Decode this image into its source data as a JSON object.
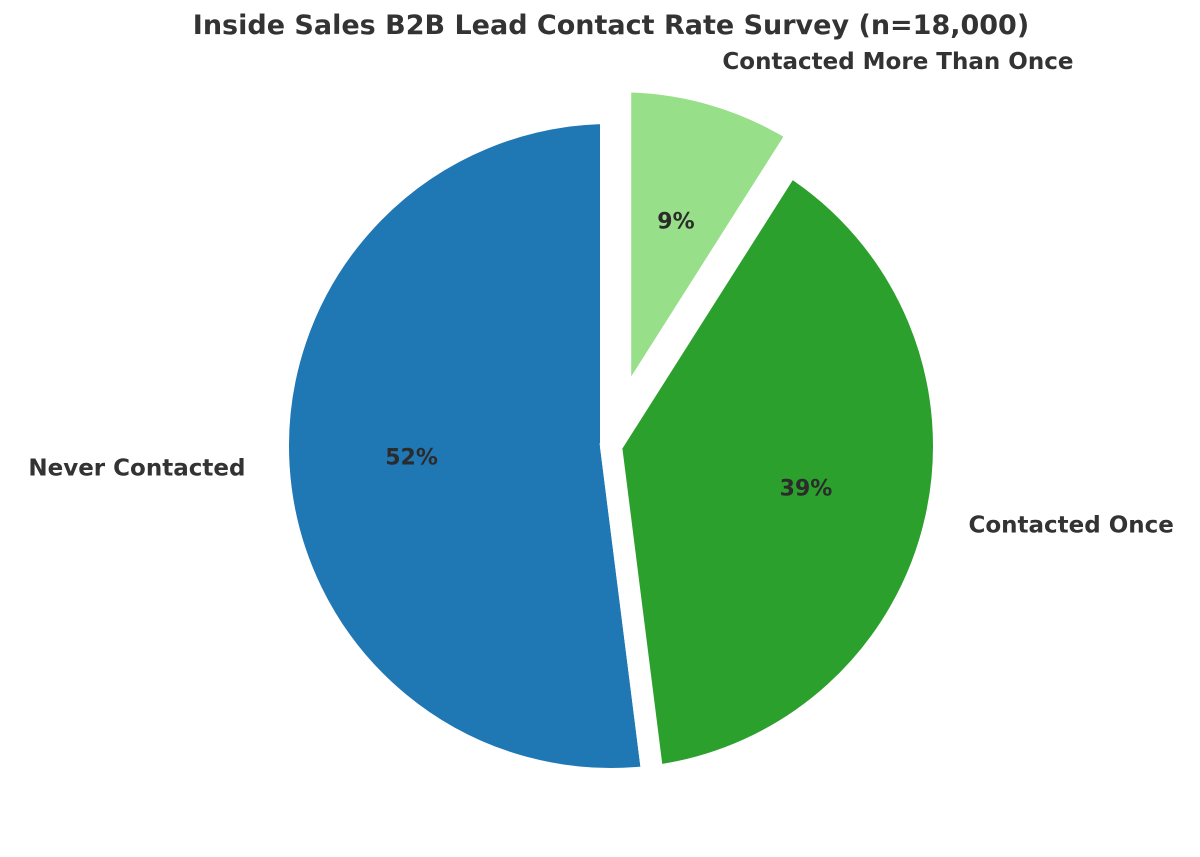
{
  "chart_data": {
    "type": "pie",
    "title": "Inside Sales B2B Lead Contact Rate Survey (n=18,000)",
    "slices": [
      {
        "label": "Never Contacted",
        "value": 52,
        "display": "52%",
        "color": "#1f77b4",
        "exploded": false
      },
      {
        "label": "Contacted Once",
        "value": 39,
        "display": "39%",
        "color": "#2ca02c",
        "exploded": false
      },
      {
        "label": "Contacted More Than Once",
        "value": 9,
        "display": "9%",
        "color": "#98df8a",
        "exploded": true
      }
    ],
    "start": "top",
    "direction": "counterclockwise",
    "legend": "none"
  }
}
